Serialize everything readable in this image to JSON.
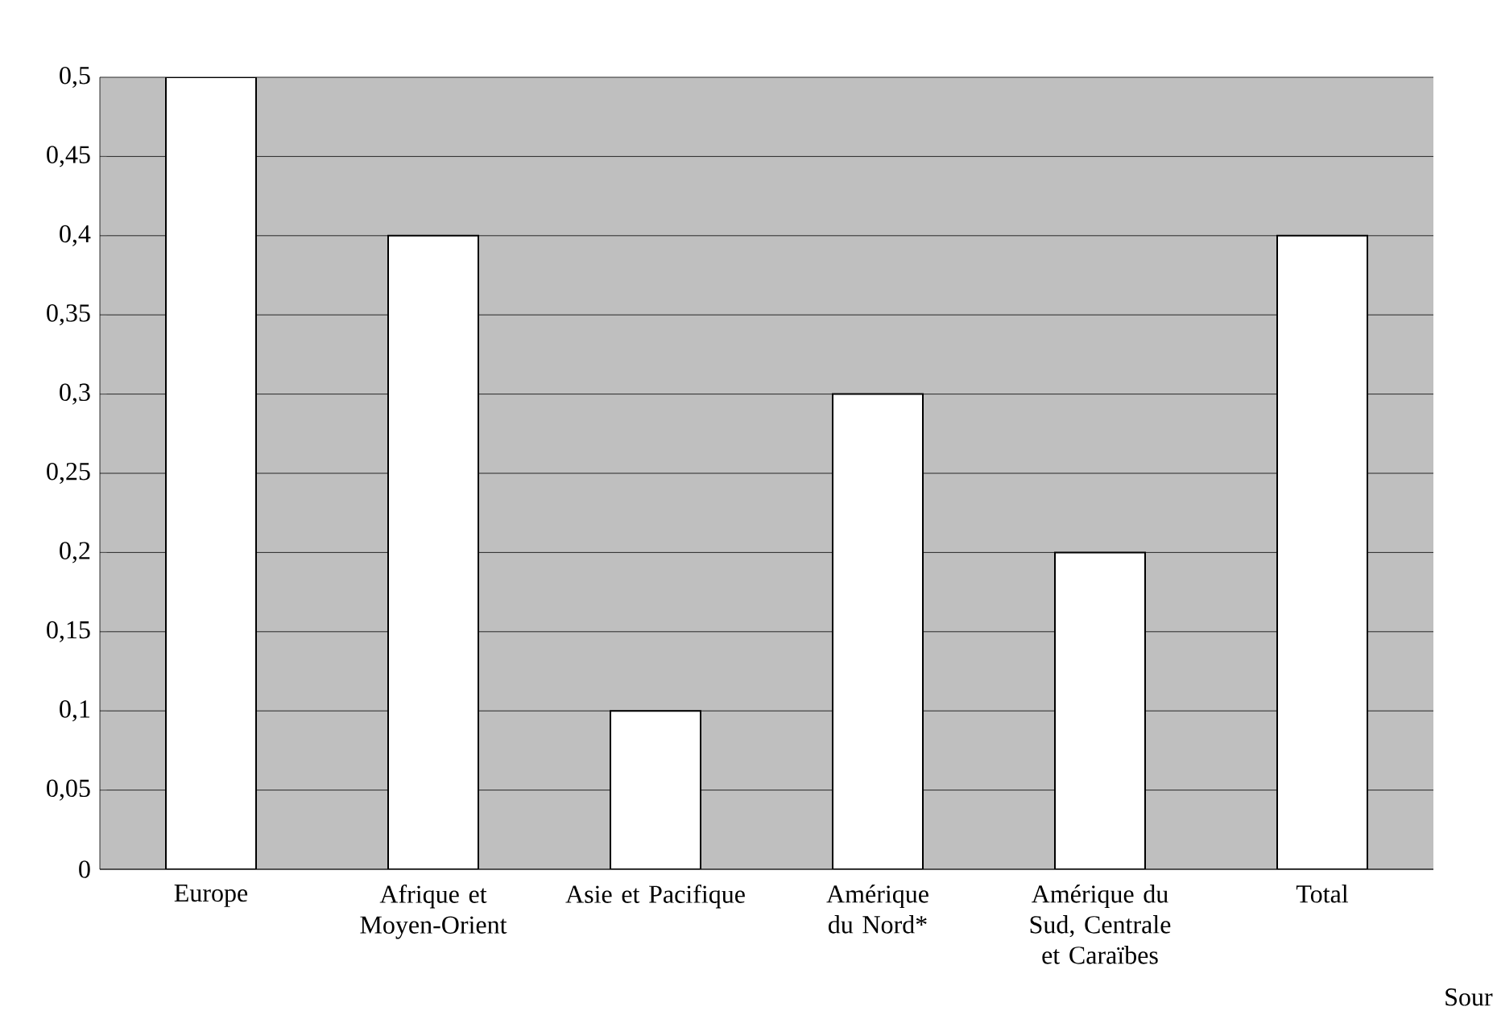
{
  "chart_data": {
    "type": "bar",
    "categories": [
      "Europe",
      "Afrique et Moyen-Orient",
      "Asie et Pacifique",
      "Amérique du Nord*",
      "Amérique du Sud, Centrale et Caraïbes",
      "Total"
    ],
    "values": [
      0.5,
      0.4,
      0.1,
      0.3,
      0.2,
      0.4
    ],
    "color": "#ffffff",
    "ylim": [
      0,
      0.5
    ],
    "yticks": [
      0,
      {
        "value": 0.05,
        "label": "0,05"
      },
      {
        "value": 0.1,
        "label": "0,1"
      },
      {
        "value": 0.15,
        "label": "0,15"
      },
      {
        "value": 0.2,
        "label": "0,2"
      },
      {
        "value": 0.25,
        "label": "0,25"
      },
      {
        "value": 0.3,
        "label": "0,3"
      },
      {
        "value": 0.35,
        "label": "0,35"
      },
      {
        "value": 0.4,
        "label": "0,4"
      },
      {
        "value": 0.45,
        "label": "0,45"
      },
      {
        "value": 0.5,
        "label": "0,5"
      }
    ],
    "grid": true,
    "annotations": [
      "Sour"
    ]
  }
}
